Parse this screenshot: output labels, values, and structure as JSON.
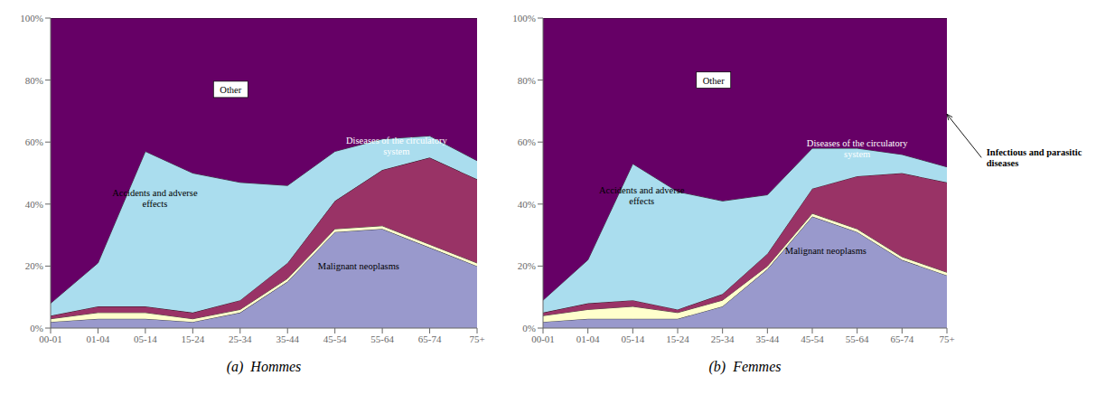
{
  "chart_data": [
    {
      "type": "area",
      "title": "(a)  Hommes",
      "stacked": true,
      "grid": false,
      "categories": [
        "00-01",
        "01-04",
        "05-14",
        "15-24",
        "25-34",
        "35-44",
        "45-54",
        "55-64",
        "65-74",
        "75+"
      ],
      "series": [
        {
          "name": "Malignant neoplasms",
          "color": "#9999cc",
          "values": [
            2,
            3,
            3,
            2,
            5,
            15,
            31,
            32,
            26,
            20
          ]
        },
        {
          "name": "Infectious and parasitic\ndiseases",
          "color": "#ffffcc",
          "values": [
            1,
            2,
            2,
            1,
            1,
            1,
            1,
            1,
            1,
            1
          ]
        },
        {
          "name": "Diseases of the circulatory\nsystem",
          "color": "#993366",
          "values": [
            1,
            2,
            2,
            2,
            3,
            5,
            9,
            18,
            28,
            27
          ]
        },
        {
          "name": "Accidents and adverse\neffects",
          "color": "#aaddee",
          "values": [
            4,
            14,
            50,
            45,
            38,
            25,
            16,
            10,
            7,
            6
          ]
        },
        {
          "name": "Other",
          "color": "#660066",
          "values": [
            92,
            79,
            43,
            50,
            53,
            54,
            43,
            39,
            38,
            46
          ]
        }
      ],
      "ylim": [
        0,
        100
      ],
      "yticks": [
        {
          "value": 0,
          "label": "0%"
        },
        {
          "value": 20,
          "label": "20%"
        },
        {
          "value": 40,
          "label": "40%"
        },
        {
          "value": 60,
          "label": "60%"
        },
        {
          "value": 80,
          "label": "80%"
        },
        {
          "value": 100,
          "label": "100%"
        }
      ],
      "annotations": [
        "Other",
        "Accidents and adverse\neffects",
        "Malignant neoplasms",
        "Diseases of the circulatory\nsystem"
      ]
    },
    {
      "type": "area",
      "title": "(b)  Femmes",
      "stacked": true,
      "grid": false,
      "categories": [
        "00-01",
        "01-04",
        "05-14",
        "15-24",
        "25-34",
        "35-44",
        "45-54",
        "55-64",
        "65-74",
        "75+"
      ],
      "series": [
        {
          "name": "Malignant neoplasms",
          "color": "#9999cc",
          "values": [
            2,
            3,
            3,
            3,
            7,
            19,
            36,
            31,
            22,
            17
          ]
        },
        {
          "name": "Infectious and parasitic\ndiseases",
          "color": "#ffffcc",
          "values": [
            2,
            3,
            4,
            2,
            2,
            1,
            1,
            1,
            1,
            1
          ]
        },
        {
          "name": "Diseases of the circulatory\nsystem",
          "color": "#993366",
          "values": [
            1,
            2,
            2,
            1,
            2,
            4,
            8,
            17,
            27,
            29
          ]
        },
        {
          "name": "Accidents and adverse\neffects",
          "color": "#aaddee",
          "values": [
            4,
            14,
            44,
            38,
            30,
            19,
            13,
            9,
            6,
            5
          ]
        },
        {
          "name": "Other",
          "color": "#660066",
          "values": [
            91,
            78,
            47,
            56,
            59,
            57,
            42,
            42,
            44,
            48
          ]
        }
      ],
      "ylim": [
        0,
        100
      ],
      "yticks": [
        {
          "value": 0,
          "label": "0%"
        },
        {
          "value": 20,
          "label": "20%"
        },
        {
          "value": 40,
          "label": "40%"
        },
        {
          "value": 60,
          "label": "60%"
        },
        {
          "value": 80,
          "label": "80%"
        },
        {
          "value": 100,
          "label": "100%"
        }
      ],
      "annotations": [
        "Other",
        "Accidents and adverse\neffects",
        "Malignant neoplasms",
        "Diseases of the circulatory\nsystem",
        "Infectious and parasitic\ndiseases"
      ]
    }
  ]
}
